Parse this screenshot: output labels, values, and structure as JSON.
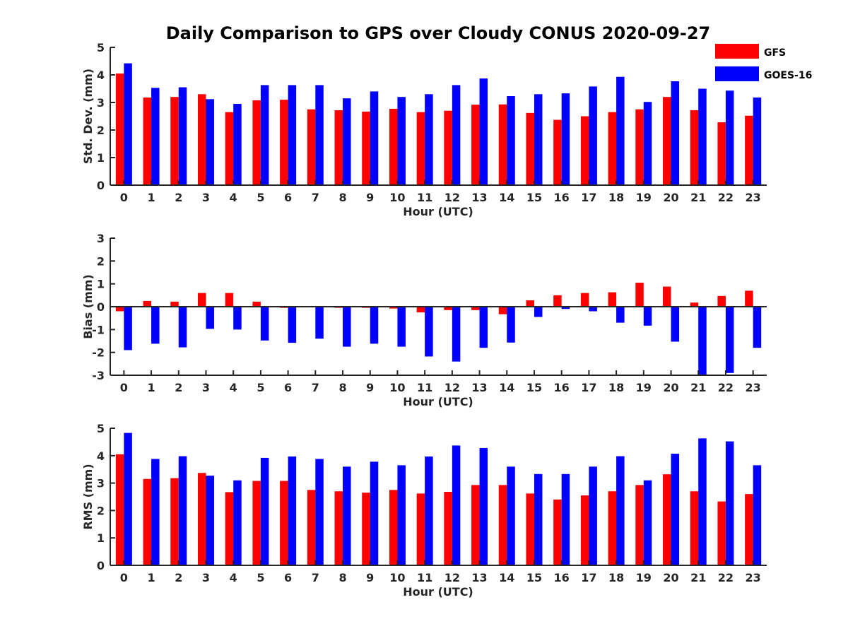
{
  "figure": {
    "title": "Daily Comparison to GPS over Cloudy CONUS 2020-09-27"
  },
  "legend": {
    "position": "top-right",
    "entries": [
      {
        "name": "GFS",
        "color": "#ff0000"
      },
      {
        "name": "GOES-16",
        "color": "#0000ff"
      }
    ]
  },
  "chart_data": [
    {
      "type": "bar",
      "xlabel": "Hour (UTC)",
      "ylabel": "Std. Dev. (mm)",
      "ylim": [
        0,
        5
      ],
      "yticks": [
        0,
        1,
        2,
        3,
        4,
        5
      ],
      "categories": [
        "0",
        "1",
        "2",
        "3",
        "4",
        "5",
        "6",
        "7",
        "8",
        "9",
        "10",
        "11",
        "12",
        "13",
        "14",
        "15",
        "16",
        "17",
        "18",
        "19",
        "20",
        "21",
        "22",
        "23"
      ],
      "series": [
        {
          "name": "GFS",
          "color": "#ff0000",
          "values": [
            4.05,
            3.18,
            3.2,
            3.3,
            2.65,
            3.08,
            3.1,
            2.75,
            2.72,
            2.67,
            2.77,
            2.65,
            2.7,
            2.92,
            2.93,
            2.62,
            2.37,
            2.5,
            2.65,
            2.75,
            3.2,
            2.72,
            2.28,
            2.52
          ]
        },
        {
          "name": "GOES-16",
          "color": "#0000ff",
          "values": [
            4.42,
            3.53,
            3.55,
            3.12,
            2.95,
            3.63,
            3.63,
            3.63,
            3.15,
            3.4,
            3.2,
            3.3,
            3.63,
            3.87,
            3.23,
            3.3,
            3.33,
            3.58,
            3.93,
            3.02,
            3.77,
            3.5,
            3.43,
            3.18
          ]
        }
      ]
    },
    {
      "type": "bar",
      "xlabel": "Hour (UTC)",
      "ylabel": "Bias (mm)",
      "ylim": [
        -3,
        3
      ],
      "yticks": [
        -3,
        -2,
        -1,
        0,
        1,
        2,
        3
      ],
      "categories": [
        "0",
        "1",
        "2",
        "3",
        "4",
        "5",
        "6",
        "7",
        "8",
        "9",
        "10",
        "11",
        "12",
        "13",
        "14",
        "15",
        "16",
        "17",
        "18",
        "19",
        "20",
        "21",
        "22",
        "23"
      ],
      "series": [
        {
          "name": "GFS",
          "color": "#ff0000",
          "values": [
            -0.2,
            0.25,
            0.22,
            0.6,
            0.6,
            0.22,
            -0.05,
            -0.03,
            -0.05,
            -0.05,
            -0.08,
            -0.25,
            -0.15,
            -0.15,
            -0.33,
            0.28,
            0.5,
            0.6,
            0.63,
            1.05,
            0.88,
            0.18,
            0.47,
            0.7
          ]
        },
        {
          "name": "GOES-16",
          "color": "#0000ff",
          "values": [
            -1.9,
            -1.62,
            -1.78,
            -0.97,
            -1.0,
            -1.48,
            -1.58,
            -1.4,
            -1.75,
            -1.62,
            -1.75,
            -2.18,
            -2.4,
            -1.8,
            -1.57,
            -0.45,
            -0.1,
            -0.2,
            -0.7,
            -0.83,
            -1.53,
            -3.0,
            -2.9,
            -1.8
          ]
        }
      ]
    },
    {
      "type": "bar",
      "xlabel": "Hour (UTC)",
      "ylabel": "RMS (mm)",
      "ylim": [
        0,
        5
      ],
      "yticks": [
        0,
        1,
        2,
        3,
        4,
        5
      ],
      "categories": [
        "0",
        "1",
        "2",
        "3",
        "4",
        "5",
        "6",
        "7",
        "8",
        "9",
        "10",
        "11",
        "12",
        "13",
        "14",
        "15",
        "16",
        "17",
        "18",
        "19",
        "20",
        "21",
        "22",
        "23"
      ],
      "series": [
        {
          "name": "GFS",
          "color": "#ff0000",
          "values": [
            4.05,
            3.15,
            3.18,
            3.37,
            2.67,
            3.08,
            3.08,
            2.75,
            2.7,
            2.65,
            2.75,
            2.62,
            2.68,
            2.93,
            2.93,
            2.62,
            2.4,
            2.55,
            2.7,
            2.93,
            3.32,
            2.7,
            2.33,
            2.6
          ]
        },
        {
          "name": "GOES-16",
          "color": "#0000ff",
          "values": [
            4.83,
            3.88,
            3.98,
            3.27,
            3.1,
            3.92,
            3.97,
            3.88,
            3.6,
            3.78,
            3.65,
            3.97,
            4.37,
            4.28,
            3.6,
            3.33,
            3.33,
            3.6,
            3.98,
            3.1,
            4.07,
            4.63,
            4.52,
            3.65
          ]
        }
      ]
    }
  ]
}
